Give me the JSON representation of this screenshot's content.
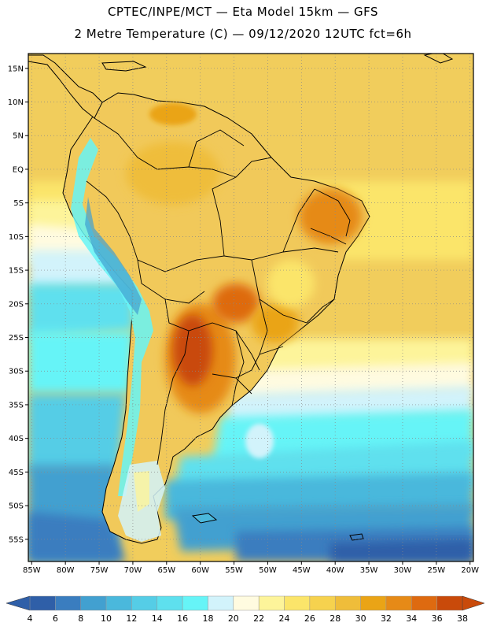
{
  "header": {
    "line1": "CPTEC/INPE/MCT —  Eta Model 15km — GFS",
    "line2": "2 Metre Temperature (C) — 09/12/2020 12UTC fct=6h"
  },
  "map": {
    "lat_ticks": [
      "15N",
      "10N",
      "5N",
      "EQ",
      "5S",
      "10S",
      "15S",
      "20S",
      "25S",
      "30S",
      "35S",
      "40S",
      "45S",
      "50S",
      "55S"
    ],
    "lon_ticks": [
      "85W",
      "80W",
      "75W",
      "70W",
      "65W",
      "60W",
      "55W",
      "50W",
      "45W",
      "40W",
      "35W",
      "30W",
      "25W",
      "20W"
    ]
  },
  "colorbar": {
    "labels": [
      "4",
      "6",
      "8",
      "10",
      "12",
      "14",
      "16",
      "18",
      "20",
      "22",
      "24",
      "26",
      "28",
      "30",
      "32",
      "34",
      "36",
      "38"
    ],
    "colors": [
      "#2f5fa8",
      "#3a7dbf",
      "#42a0d0",
      "#4ab8dc",
      "#55cde6",
      "#5ee0ee",
      "#66f4f7",
      "#d2f3fb",
      "#fffbe0",
      "#fdf49a",
      "#fbe56a",
      "#f6d24e",
      "#efbd3a",
      "#eaa416",
      "#e68a17",
      "#de6a10",
      "#c94a0a"
    ]
  }
}
